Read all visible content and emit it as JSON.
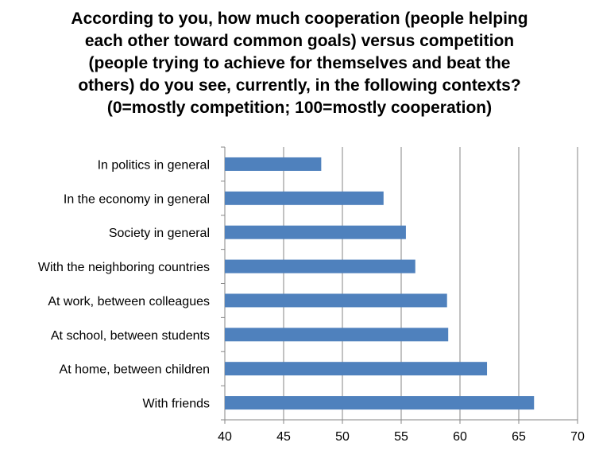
{
  "chart_data": {
    "type": "bar",
    "orientation": "horizontal",
    "title_lines": [
      "According to you, how much cooperation (people helping",
      "each other toward common goals) versus competition",
      "(people trying to achieve for themselves and beat the",
      "others) do you see, currently, in the following contexts?",
      "(0=mostly competition; 100=mostly cooperation)"
    ],
    "categories": [
      "In politics in general",
      "In the economy in general",
      "Society in general",
      "With the neighboring countries",
      "At work, between colleagues",
      "At school, between students",
      "At home, between children",
      "With friends"
    ],
    "values": [
      48.2,
      53.5,
      55.4,
      56.2,
      58.9,
      59.0,
      62.3,
      66.3
    ],
    "xlim": [
      40,
      70
    ],
    "xticks": [
      "40",
      "45",
      "50",
      "55",
      "60",
      "65",
      "70"
    ],
    "grid": true,
    "legend": false,
    "bar_color": "#4f81bd",
    "grid_color": "#868686"
  }
}
